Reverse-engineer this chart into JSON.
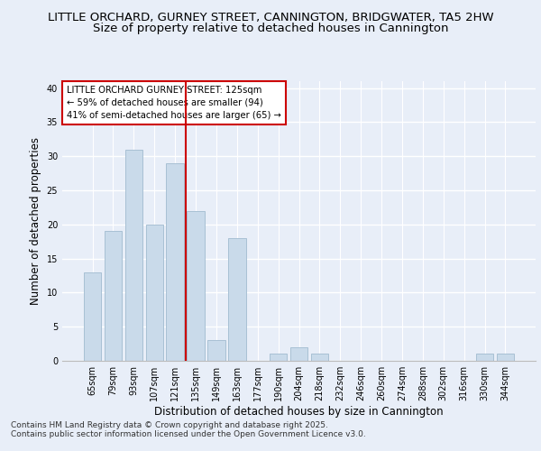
{
  "title1": "LITTLE ORCHARD, GURNEY STREET, CANNINGTON, BRIDGWATER, TA5 2HW",
  "title2": "Size of property relative to detached houses in Cannington",
  "xlabel": "Distribution of detached houses by size in Cannington",
  "ylabel": "Number of detached properties",
  "bar_color": "#c9daea",
  "bar_edge_color": "#a8c0d4",
  "categories": [
    "65sqm",
    "79sqm",
    "93sqm",
    "107sqm",
    "121sqm",
    "135sqm",
    "149sqm",
    "163sqm",
    "177sqm",
    "190sqm",
    "204sqm",
    "218sqm",
    "232sqm",
    "246sqm",
    "260sqm",
    "274sqm",
    "288sqm",
    "302sqm",
    "316sqm",
    "330sqm",
    "344sqm"
  ],
  "values": [
    13,
    19,
    31,
    20,
    29,
    22,
    3,
    18,
    0,
    1,
    2,
    1,
    0,
    0,
    0,
    0,
    0,
    0,
    0,
    1,
    1
  ],
  "vline_x": 4.5,
  "vline_color": "#cc0000",
  "annotation_text": "LITTLE ORCHARD GURNEY STREET: 125sqm\n← 59% of detached houses are smaller (94)\n41% of semi-detached houses are larger (65) →",
  "ylim": [
    0,
    41
  ],
  "yticks": [
    0,
    5,
    10,
    15,
    20,
    25,
    30,
    35,
    40
  ],
  "footnote1": "Contains HM Land Registry data © Crown copyright and database right 2025.",
  "footnote2": "Contains public sector information licensed under the Open Government Licence v3.0.",
  "background_color": "#e8eef8",
  "grid_color": "#ffffff",
  "title_fontsize": 9.5,
  "subtitle_fontsize": 9.5,
  "tick_fontsize": 7,
  "ylabel_fontsize": 8.5,
  "xlabel_fontsize": 8.5,
  "footnote_fontsize": 6.5
}
